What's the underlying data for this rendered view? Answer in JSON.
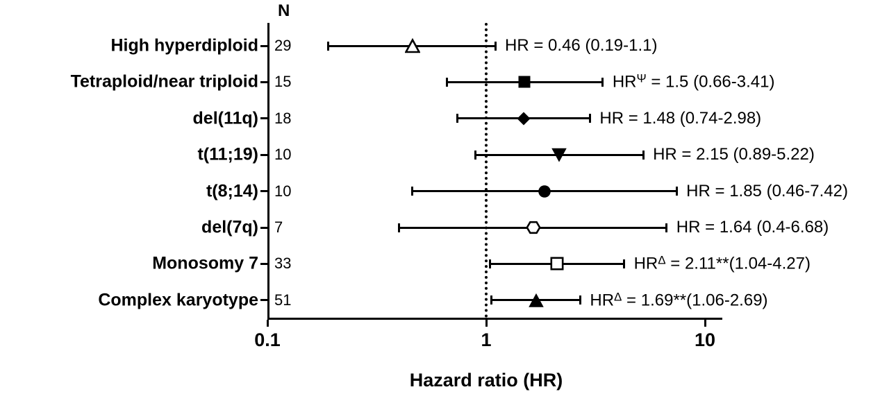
{
  "chart_data": {
    "type": "forest",
    "title": "",
    "xlabel": "Hazard ratio (HR)",
    "x_scale": "log",
    "x_ticks": [
      "0.1",
      "1",
      "10"
    ],
    "x_tick_values": [
      0.1,
      1,
      10
    ],
    "x_range": [
      0.1,
      12
    ],
    "reference_line": 1,
    "n_column_header": "N",
    "grid": false,
    "rows": [
      {
        "label": "High hyperdiploid",
        "n": "29",
        "hr": 0.46,
        "ci_low": 0.19,
        "ci_high": 1.1,
        "marker": "triangle-up-open",
        "ann_pre": "HR",
        "ann_sup": "",
        "ann_post": " = 0.46 (0.19-1.1)"
      },
      {
        "label": "Tetraploid/near triploid",
        "n": "15",
        "hr": 1.5,
        "ci_low": 0.66,
        "ci_high": 3.41,
        "marker": "square-filled",
        "ann_pre": "HR",
        "ann_sup": "Ψ",
        "ann_post": " = 1.5 (0.66-3.41)"
      },
      {
        "label": "del(11q)",
        "n": "18",
        "hr": 1.48,
        "ci_low": 0.74,
        "ci_high": 2.98,
        "marker": "diamond-filled",
        "ann_pre": "HR",
        "ann_sup": "",
        "ann_post": " = 1.48 (0.74-2.98)"
      },
      {
        "label": "t(11;19)",
        "n": "10",
        "hr": 2.15,
        "ci_low": 0.89,
        "ci_high": 5.22,
        "marker": "triangle-down-filled",
        "ann_pre": "HR",
        "ann_sup": "",
        "ann_post": " = 2.15 (0.89-5.22)"
      },
      {
        "label": "t(8;14)",
        "n": "10",
        "hr": 1.85,
        "ci_low": 0.46,
        "ci_high": 7.42,
        "marker": "circle-filled",
        "ann_pre": "HR",
        "ann_sup": "",
        "ann_post": " = 1.85 (0.46-7.42)"
      },
      {
        "label": "del(7q)",
        "n": "7",
        "hr": 1.64,
        "ci_low": 0.4,
        "ci_high": 6.68,
        "marker": "hexagon-open",
        "ann_pre": "HR",
        "ann_sup": "",
        "ann_post": " = 1.64 (0.4-6.68)"
      },
      {
        "label": "Monosomy 7",
        "n": "33",
        "hr": 2.11,
        "ci_low": 1.04,
        "ci_high": 4.27,
        "marker": "square-open",
        "ann_pre": "HR",
        "ann_sup": "Δ",
        "ann_post": " = 2.11**(1.04-4.27)"
      },
      {
        "label": "Complex karyotype",
        "n": "51",
        "hr": 1.69,
        "ci_low": 1.06,
        "ci_high": 2.69,
        "marker": "triangle-up-filled",
        "ann_pre": "HR",
        "ann_sup": "Δ",
        "ann_post": " = 1.69**(1.06-2.69)"
      }
    ]
  }
}
